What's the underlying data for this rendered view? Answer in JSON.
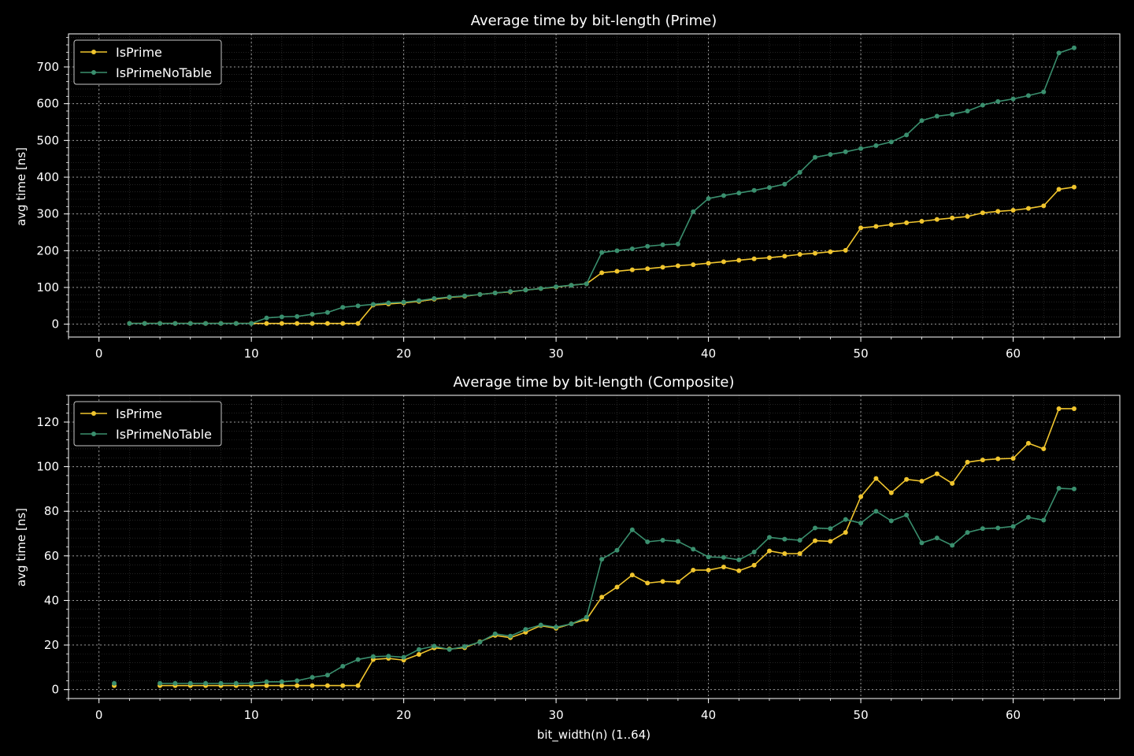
{
  "colors": {
    "background": "#000000",
    "axes": "#ffffff",
    "grid_major": "#9a9a9a",
    "grid_minor": "#3a3a3a",
    "legend_border": "#c8c8c8"
  },
  "shared_xlabel": "bit_width(n) (1..64)",
  "chart_data": [
    {
      "type": "line",
      "title": "Average time by bit-length (Prime)",
      "xlabel": "",
      "ylabel": "avg time [ns]",
      "xlim": [
        -2,
        67
      ],
      "ylim": [
        -35,
        790
      ],
      "xticks": [
        0,
        10,
        20,
        30,
        40,
        50,
        60
      ],
      "yticks": [
        0,
        100,
        200,
        300,
        400,
        500,
        600,
        700
      ],
      "grid": true,
      "legend_position": "top-left",
      "series": [
        {
          "name": "IsPrime",
          "color": "#f0c52e",
          "x": [
            2,
            3,
            4,
            5,
            6,
            7,
            8,
            9,
            10,
            11,
            12,
            13,
            14,
            15,
            16,
            17,
            18,
            19,
            20,
            21,
            22,
            23,
            24,
            25,
            26,
            27,
            28,
            29,
            30,
            31,
            32,
            33,
            34,
            35,
            36,
            37,
            38,
            39,
            40,
            41,
            42,
            43,
            44,
            45,
            46,
            47,
            48,
            49,
            50,
            51,
            52,
            53,
            54,
            55,
            56,
            57,
            58,
            59,
            60,
            61,
            62,
            63,
            64
          ],
          "values": [
            2,
            2,
            2,
            2,
            2,
            2,
            2,
            2,
            2,
            2,
            2,
            2,
            2,
            2,
            2,
            2,
            52,
            55,
            58,
            62,
            68,
            73,
            76,
            81,
            85,
            88,
            93,
            97,
            101,
            106,
            110,
            140,
            144,
            148,
            151,
            155,
            159,
            162,
            166,
            170,
            174,
            178,
            181,
            185,
            190,
            193,
            197,
            201,
            262,
            266,
            271,
            276,
            280,
            285,
            289,
            293,
            303,
            307,
            310,
            315,
            322,
            367,
            373
          ]
        },
        {
          "name": "IsPrimeNoTable",
          "color": "#3a8f6e",
          "x": [
            2,
            3,
            4,
            5,
            6,
            7,
            8,
            9,
            10,
            11,
            12,
            13,
            14,
            15,
            16,
            17,
            18,
            19,
            20,
            21,
            22,
            23,
            24,
            25,
            26,
            27,
            28,
            29,
            30,
            31,
            32,
            33,
            34,
            35,
            36,
            37,
            38,
            39,
            40,
            41,
            42,
            43,
            44,
            45,
            46,
            47,
            48,
            49,
            50,
            51,
            52,
            53,
            54,
            55,
            56,
            57,
            58,
            59,
            60,
            61,
            62,
            63,
            64
          ],
          "values": [
            2,
            2,
            2,
            2,
            2,
            2,
            2,
            2,
            2,
            17,
            20,
            21,
            27,
            32,
            46,
            50,
            54,
            58,
            60,
            64,
            70,
            74,
            77,
            81,
            85,
            89,
            93,
            97,
            102,
            106,
            110,
            195,
            200,
            205,
            212,
            216,
            218,
            306,
            342,
            350,
            357,
            364,
            372,
            381,
            413,
            454,
            462,
            469,
            478,
            486,
            496,
            515,
            554,
            566,
            571,
            580,
            596,
            606,
            613,
            622,
            632,
            738,
            752
          ]
        }
      ]
    },
    {
      "type": "line",
      "title": "Average time by bit-length (Composite)",
      "xlabel": "bit_width(n) (1..64)",
      "ylabel": "avg time [ns]",
      "xlim": [
        -2,
        67
      ],
      "ylim": [
        -4,
        132
      ],
      "xticks": [
        0,
        10,
        20,
        30,
        40,
        50,
        60
      ],
      "yticks": [
        0,
        20,
        40,
        60,
        80,
        100,
        120
      ],
      "grid": true,
      "legend_position": "top-left",
      "series": [
        {
          "name": "IsPrime",
          "color": "#f0c52e",
          "x": [
            1,
            null,
            4,
            5,
            6,
            7,
            8,
            9,
            10,
            11,
            12,
            13,
            14,
            15,
            16,
            17,
            18,
            19,
            20,
            21,
            22,
            23,
            24,
            25,
            26,
            27,
            28,
            29,
            30,
            31,
            32,
            33,
            34,
            35,
            36,
            37,
            38,
            39,
            40,
            41,
            42,
            43,
            44,
            45,
            46,
            47,
            48,
            49,
            50,
            51,
            52,
            53,
            54,
            55,
            56,
            57,
            58,
            59,
            60,
            61,
            62,
            63,
            64
          ],
          "values": [
            1.8,
            null,
            1.8,
            1.8,
            1.8,
            1.8,
            1.8,
            1.8,
            1.8,
            1.8,
            1.8,
            1.8,
            1.8,
            1.8,
            1.8,
            1.8,
            13.5,
            14,
            13.2,
            15.8,
            18.7,
            18.2,
            18.8,
            21.5,
            24.3,
            23.3,
            25.7,
            28.7,
            27.5,
            29.5,
            31.5,
            41.5,
            46,
            51.4,
            47.8,
            48.5,
            48.3,
            53.6,
            53.6,
            55,
            53.3,
            55.8,
            62.2,
            61,
            61,
            66.8,
            66.5,
            70.5,
            86.5,
            94.7,
            88.3,
            94.3,
            93.5,
            96.8,
            92.5,
            102,
            103,
            103.5,
            103.7,
            110.5,
            108,
            126,
            126
          ]
        },
        {
          "name": "IsPrimeNoTable",
          "color": "#3a8f6e",
          "x": [
            1,
            null,
            4,
            5,
            6,
            7,
            8,
            9,
            10,
            11,
            12,
            13,
            14,
            15,
            16,
            17,
            18,
            19,
            20,
            21,
            22,
            23,
            24,
            25,
            26,
            27,
            28,
            29,
            30,
            31,
            32,
            33,
            34,
            35,
            36,
            37,
            38,
            39,
            40,
            41,
            42,
            43,
            44,
            45,
            46,
            47,
            48,
            49,
            50,
            51,
            52,
            53,
            54,
            55,
            56,
            57,
            58,
            59,
            60,
            61,
            62,
            63,
            64
          ],
          "values": [
            2.8,
            null,
            2.8,
            2.8,
            2.8,
            2.8,
            2.8,
            2.8,
            2.8,
            3.5,
            3.5,
            4,
            5.5,
            6.5,
            10.5,
            13.5,
            14.8,
            15,
            14.5,
            18,
            19.5,
            18,
            19.3,
            21.3,
            25,
            24,
            27,
            29,
            28,
            29.5,
            32.5,
            58.5,
            62.5,
            71.7,
            66.3,
            67,
            66.5,
            63,
            59.5,
            59.3,
            58.2,
            61.7,
            68.3,
            67.5,
            67,
            72.5,
            72.2,
            76.3,
            74.7,
            80,
            75.7,
            78.3,
            65.8,
            68,
            64.7,
            70.5,
            72.2,
            72.5,
            73.2,
            77.3,
            76,
            90.3,
            90
          ]
        }
      ]
    }
  ]
}
